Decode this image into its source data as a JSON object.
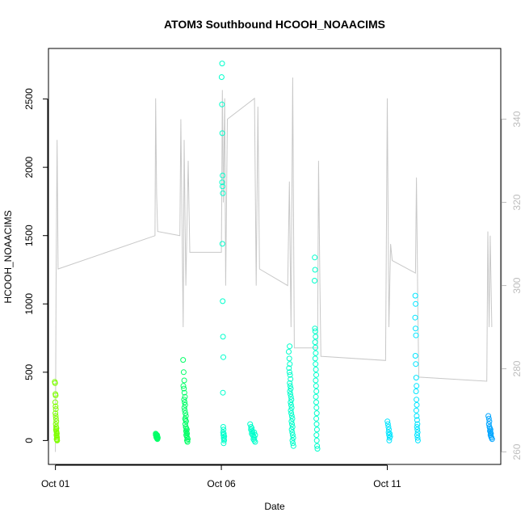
{
  "chart_data": {
    "type": "scatter",
    "title": "ATOM3 Southbound HCOOH_NOAACIMS",
    "xlabel": "Date",
    "ylabel": "HCOOH_NOAACIMS",
    "x_ticks": [
      {
        "label": "Oct 01",
        "day": 1
      },
      {
        "label": "Oct 06",
        "day": 6
      },
      {
        "label": "Oct 11",
        "day": 11
      }
    ],
    "xlim": [
      0.79,
      14.42
    ],
    "ylim": [
      -175,
      2870
    ],
    "y_ticks": [
      0,
      500,
      1000,
      1500,
      2000,
      2500
    ],
    "y2_ticks": [
      260,
      280,
      300,
      320,
      340
    ],
    "y2lim": [
      257.0,
      357.0
    ],
    "y2_label": "",
    "colors": {
      "scatter_scale": [
        "#7fff00",
        "#00ff66",
        "#00ffcc",
        "#00e5ff",
        "#00a5ff"
      ],
      "secondary_line": "#c8c8c8"
    },
    "series": [
      {
        "x_center": 1.02,
        "x_spread": 0.06,
        "values": [
          430,
          420,
          340,
          330,
          280,
          250,
          230,
          200,
          180,
          160,
          140,
          120,
          100,
          90,
          80,
          70,
          60,
          50,
          40,
          30,
          20,
          10,
          5,
          0
        ]
      },
      {
        "x_center": 4.05,
        "x_spread": 0.06,
        "values": [
          50,
          45,
          40,
          35,
          30,
          25,
          20,
          15,
          10,
          40,
          30,
          20
        ]
      },
      {
        "x_center": 4.92,
        "x_spread": 0.12,
        "values": [
          590,
          500,
          440,
          400,
          380,
          350,
          320,
          300,
          280,
          260,
          240,
          220,
          200,
          180,
          160,
          150,
          140,
          120,
          100,
          90,
          80,
          70,
          60,
          50,
          40,
          30,
          20,
          10,
          0,
          -10
        ]
      },
      {
        "x_center": 6.05,
        "x_spread": 0.07,
        "values": [
          2760,
          2660,
          2460,
          2250,
          1940,
          1890,
          1860,
          1810,
          1440,
          1020,
          760,
          610,
          350,
          100,
          80,
          60,
          40,
          20,
          0,
          -20,
          10,
          30,
          50
        ]
      },
      {
        "x_center": 6.95,
        "x_spread": 0.15,
        "values": [
          120,
          100,
          90,
          80,
          70,
          60,
          50,
          40,
          30,
          20,
          10,
          0,
          -10,
          60,
          40
        ]
      },
      {
        "x_center": 8.1,
        "x_spread": 0.12,
        "values": [
          690,
          650,
          600,
          560,
          530,
          500,
          480,
          450,
          420,
          400,
          380,
          360,
          340,
          320,
          300,
          280,
          260,
          240,
          220,
          200,
          180,
          160,
          140,
          120,
          100,
          80,
          60,
          40,
          20,
          0,
          -20,
          -40
        ]
      },
      {
        "x_center": 8.85,
        "x_spread": 0.07,
        "values": [
          1340,
          1250,
          1170,
          820,
          800,
          760,
          720,
          680,
          640,
          600,
          560,
          520,
          480,
          440,
          400,
          360,
          320,
          280,
          240,
          200,
          160,
          120,
          80,
          40,
          0,
          -40,
          -60
        ]
      },
      {
        "x_center": 11.05,
        "x_spread": 0.07,
        "values": [
          140,
          120,
          100,
          80,
          60,
          40,
          20,
          0,
          50,
          30
        ]
      },
      {
        "x_center": 11.88,
        "x_spread": 0.08,
        "values": [
          1060,
          1000,
          900,
          820,
          770,
          620,
          560,
          460,
          400,
          360,
          300,
          260,
          220,
          180,
          150,
          120,
          100,
          80,
          60,
          40,
          20,
          0
        ]
      },
      {
        "x_center": 14.1,
        "x_spread": 0.09,
        "values": [
          180,
          160,
          140,
          120,
          100,
          90,
          80,
          70,
          60,
          50,
          40,
          30,
          20,
          10
        ]
      }
    ],
    "secondary_path": [
      [
        1.0,
        260
      ],
      [
        1.02,
        300
      ],
      [
        1.05,
        335
      ],
      [
        1.08,
        304
      ],
      [
        4.0,
        312
      ],
      [
        4.02,
        345
      ],
      [
        4.05,
        322
      ],
      [
        4.08,
        313
      ],
      [
        4.75,
        312
      ],
      [
        4.78,
        340
      ],
      [
        4.85,
        290
      ],
      [
        4.88,
        335
      ],
      [
        4.93,
        300
      ],
      [
        5.0,
        330
      ],
      [
        5.05,
        308
      ],
      [
        6.0,
        308
      ],
      [
        6.03,
        347
      ],
      [
        6.06,
        320
      ],
      [
        6.1,
        345
      ],
      [
        6.13,
        300
      ],
      [
        6.18,
        340
      ],
      [
        7.0,
        345
      ],
      [
        7.05,
        300
      ],
      [
        7.1,
        343
      ],
      [
        7.15,
        304
      ],
      [
        8.0,
        300
      ],
      [
        8.05,
        325
      ],
      [
        8.1,
        290
      ],
      [
        8.15,
        350
      ],
      [
        8.2,
        285
      ],
      [
        8.9,
        285
      ],
      [
        8.93,
        330
      ],
      [
        8.97,
        300
      ],
      [
        9.0,
        283
      ],
      [
        10.95,
        282
      ],
      [
        11.0,
        345
      ],
      [
        11.05,
        290
      ],
      [
        11.1,
        310
      ],
      [
        11.15,
        306
      ],
      [
        11.85,
        303
      ],
      [
        11.88,
        326
      ],
      [
        11.92,
        295
      ],
      [
        11.95,
        278
      ],
      [
        14.0,
        277
      ],
      [
        14.03,
        313
      ],
      [
        14.07,
        290
      ],
      [
        14.1,
        312
      ],
      [
        14.15,
        290
      ]
    ]
  }
}
